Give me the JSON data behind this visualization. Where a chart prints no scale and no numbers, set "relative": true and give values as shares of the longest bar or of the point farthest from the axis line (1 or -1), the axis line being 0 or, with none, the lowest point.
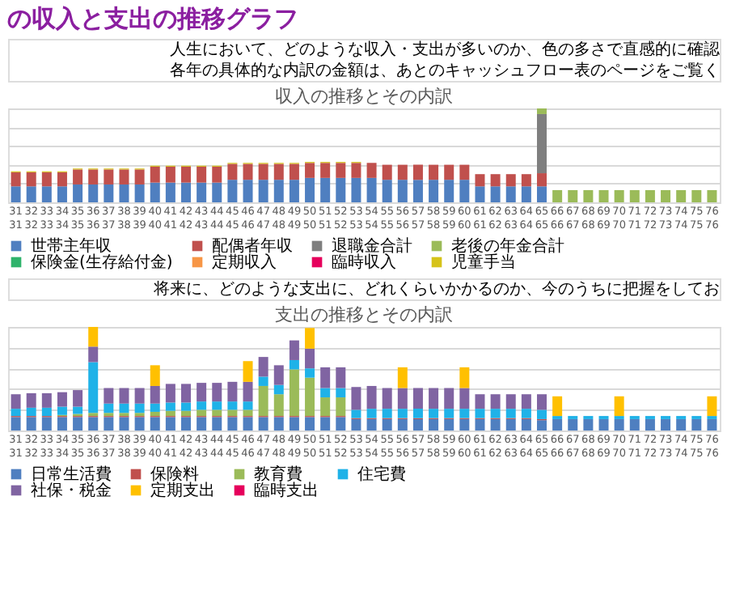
{
  "chart_data": [
    {
      "type": "bar",
      "title": "の収入と支出の推移グラフ",
      "subtitle": "収入の推移とその内訳",
      "annotations": [
        "人生において、どのような収入・支出が多いのか、色の多さで直感的に確認",
        "各年の具体的な内訳の金額は、あとのキャッシュフロー表のページをご覧く"
      ],
      "stacked": true,
      "relative": true,
      "grid": "y",
      "legend": "bottom",
      "categories": [
        "31\n31",
        "32\n32",
        "33\n33",
        "34\n34",
        "35\n35",
        "36\n36",
        "37\n37",
        "38\n38",
        "39\n39",
        "40\n40",
        "41\n41",
        "42\n42",
        "43\n43",
        "44\n44",
        "45\n45",
        "46\n46",
        "47\n47",
        "48\n48",
        "49\n49",
        "50\n50",
        "51\n51",
        "52\n52",
        "53\n53",
        "54\n54",
        "55\n55",
        "56\n56",
        "57\n57",
        "58\n58",
        "59\n59",
        "60\n60",
        "61\n61",
        "62\n62",
        "63\n63",
        "64\n64",
        "65\n65",
        "66\n66",
        "67\n67",
        "68\n68",
        "69\n69",
        "70\n70",
        "71\n71",
        "72\n72",
        "73\n73",
        "74\n74",
        "75\n75",
        "76\n76"
      ],
      "series": [
        {
          "name": "世帯主年収",
          "color": "#4f7fc0",
          "values": [
            0.17,
            0.17,
            0.17,
            0.17,
            0.19,
            0.19,
            0.19,
            0.19,
            0.19,
            0.21,
            0.21,
            0.21,
            0.21,
            0.21,
            0.24,
            0.24,
            0.24,
            0.24,
            0.24,
            0.26,
            0.26,
            0.26,
            0.26,
            0.26,
            0.24,
            0.24,
            0.24,
            0.24,
            0.24,
            0.24,
            0.17,
            0.17,
            0.17,
            0.17,
            0.17,
            null,
            null,
            null,
            null,
            null,
            null,
            null,
            null,
            null,
            null,
            null
          ]
        },
        {
          "name": "配偶者年収",
          "color": "#c0504d",
          "values": [
            0.15,
            0.15,
            0.15,
            0.15,
            0.16,
            0.16,
            0.16,
            0.16,
            0.16,
            0.17,
            0.17,
            0.17,
            0.17,
            0.17,
            0.17,
            0.17,
            0.17,
            0.17,
            0.17,
            0.16,
            0.16,
            0.16,
            0.16,
            0.16,
            0.16,
            0.16,
            0.16,
            0.16,
            0.16,
            0.16,
            0.13,
            0.13,
            0.13,
            0.13,
            0.14,
            null,
            null,
            null,
            null,
            null,
            null,
            null,
            null,
            null,
            null,
            null
          ]
        },
        {
          "name": "退職金合計",
          "color": "#7f7f7f",
          "values": [
            null,
            null,
            null,
            null,
            null,
            null,
            null,
            null,
            null,
            null,
            null,
            null,
            null,
            null,
            null,
            null,
            null,
            null,
            null,
            null,
            null,
            null,
            null,
            null,
            null,
            null,
            null,
            null,
            null,
            null,
            null,
            null,
            null,
            null,
            0.63,
            null,
            null,
            null,
            null,
            null,
            null,
            null,
            null,
            null,
            null,
            null
          ]
        },
        {
          "name": "老後の年金合計",
          "color": "#9bbb59",
          "values": [
            null,
            null,
            null,
            null,
            null,
            null,
            null,
            null,
            null,
            null,
            null,
            null,
            null,
            null,
            null,
            null,
            null,
            null,
            null,
            null,
            null,
            null,
            null,
            null,
            null,
            null,
            null,
            null,
            null,
            null,
            null,
            null,
            null,
            null,
            0.06,
            0.13,
            0.13,
            0.13,
            0.13,
            0.13,
            0.13,
            0.13,
            0.13,
            0.13,
            0.13,
            0.13
          ]
        },
        {
          "name": "保険金(生存給付金)",
          "color": "#2fb36b",
          "values": [
            null,
            null,
            null,
            null,
            null,
            null,
            null,
            null,
            null,
            null,
            null,
            null,
            null,
            null,
            null,
            null,
            null,
            null,
            null,
            null,
            null,
            null,
            null,
            null,
            null,
            null,
            null,
            null,
            null,
            null,
            null,
            null,
            null,
            null,
            null,
            null,
            null,
            null,
            null,
            null,
            null,
            null,
            null,
            null,
            null,
            null
          ]
        },
        {
          "name": "定期収入",
          "color": "#f79646",
          "values": [
            null,
            null,
            null,
            null,
            null,
            null,
            null,
            null,
            null,
            null,
            null,
            null,
            null,
            null,
            null,
            null,
            null,
            null,
            null,
            null,
            null,
            null,
            null,
            null,
            null,
            null,
            null,
            null,
            null,
            null,
            null,
            null,
            null,
            null,
            null,
            null,
            null,
            null,
            null,
            null,
            null,
            null,
            null,
            null,
            null,
            null
          ]
        },
        {
          "name": "臨時収入",
          "color": "#e6005c",
          "values": [
            null,
            null,
            null,
            null,
            null,
            null,
            null,
            null,
            null,
            null,
            null,
            null,
            null,
            null,
            null,
            null,
            null,
            null,
            null,
            null,
            null,
            null,
            null,
            null,
            null,
            null,
            null,
            null,
            null,
            null,
            null,
            null,
            null,
            null,
            null,
            null,
            null,
            null,
            null,
            null,
            null,
            null,
            null,
            null,
            null,
            null
          ]
        },
        {
          "name": "児童手当",
          "color": "#d6c31a",
          "values": [
            0.01,
            0.01,
            0.01,
            0.01,
            0.01,
            0.01,
            0.01,
            0.01,
            0.01,
            0.01,
            0.01,
            0.01,
            0.01,
            0.01,
            0.01,
            0.01,
            0.01,
            0.01,
            0.01,
            0.01,
            0.01,
            0.01,
            0.01,
            null,
            null,
            null,
            null,
            null,
            null,
            null,
            null,
            null,
            null,
            null,
            null,
            null,
            null,
            null,
            null,
            null,
            null,
            null,
            null,
            null,
            null,
            null
          ]
        }
      ]
    },
    {
      "type": "bar",
      "title": "支出の推移とその内訳",
      "annotations": [
        "将来に、どのような支出に、どれくらいかかるのか、今のうちに把握をしてお"
      ],
      "stacked": true,
      "relative": true,
      "grid": "y",
      "legend": "bottom",
      "categories": [
        "31\n31",
        "32\n32",
        "33\n33",
        "34\n34",
        "35\n35",
        "36\n36",
        "37\n37",
        "38\n38",
        "39\n39",
        "40\n40",
        "41\n41",
        "42\n42",
        "43\n43",
        "44\n44",
        "45\n45",
        "46\n46",
        "47\n47",
        "48\n48",
        "49\n49",
        "50\n50",
        "51\n51",
        "52\n52",
        "53\n53",
        "54\n54",
        "55\n55",
        "56\n56",
        "57\n57",
        "58\n58",
        "59\n59",
        "60\n60",
        "61\n61",
        "62\n62",
        "63\n63",
        "64\n64",
        "65\n65",
        "66\n66",
        "67\n67",
        "68\n68",
        "69\n69",
        "70\n70",
        "71\n71",
        "72\n72",
        "73\n73",
        "74\n74",
        "75\n75",
        "76\n76"
      ],
      "series": [
        {
          "name": "日常生活費",
          "color": "#4f7fc0",
          "values": [
            0.13,
            0.13,
            0.13,
            0.13,
            0.13,
            0.13,
            0.13,
            0.13,
            0.13,
            0.13,
            0.13,
            0.13,
            0.13,
            0.13,
            0.13,
            0.13,
            0.13,
            0.13,
            0.13,
            0.13,
            0.13,
            0.13,
            0.11,
            0.11,
            0.11,
            0.11,
            0.11,
            0.11,
            0.11,
            0.11,
            0.11,
            0.11,
            0.11,
            0.11,
            0.1,
            0.11,
            0.11,
            0.11,
            0.11,
            0.11,
            0.11,
            0.11,
            0.11,
            0.11,
            0.11,
            0.11
          ]
        },
        {
          "name": "保険料",
          "color": "#c0504d",
          "values": [
            0.01,
            0.01,
            0.01,
            0.01,
            0.01,
            0.01,
            0.01,
            0.01,
            0.01,
            0.01,
            0.01,
            0.01,
            0.01,
            0.01,
            0.01,
            0.01,
            0.01,
            0.01,
            0.01,
            0.01,
            0.01,
            0.01,
            0.01,
            0.01,
            0.01,
            0.01,
            0.01,
            0.01,
            0.01,
            0.01,
            0.01,
            0.01,
            0.01,
            0.01,
            0.01,
            null,
            null,
            null,
            null,
            null,
            null,
            null,
            null,
            null,
            null,
            null
          ]
        },
        {
          "name": "教育費",
          "color": "#9bbb59",
          "values": [
            null,
            null,
            null,
            0.01,
            0.02,
            0.03,
            0.03,
            0.03,
            0.03,
            0.04,
            0.05,
            0.05,
            0.06,
            0.06,
            0.06,
            0.06,
            0.29,
            0.21,
            0.45,
            0.37,
            0.18,
            0.18,
            null,
            null,
            null,
            null,
            null,
            null,
            null,
            null,
            null,
            null,
            null,
            null,
            null,
            null,
            null,
            null,
            null,
            null,
            null,
            null,
            null,
            null,
            null,
            null
          ]
        },
        {
          "name": "住宅費",
          "color": "#1fb2e8",
          "values": [
            0.07,
            0.08,
            0.08,
            0.08,
            0.07,
            0.49,
            0.09,
            0.09,
            0.09,
            0.08,
            0.08,
            0.08,
            0.08,
            0.08,
            0.08,
            0.08,
            0.09,
            0.09,
            0.09,
            0.09,
            0.09,
            0.09,
            0.08,
            0.09,
            0.09,
            0.09,
            0.09,
            0.09,
            0.09,
            0.09,
            0.09,
            0.09,
            0.09,
            0.09,
            0.09,
            0.03,
            0.03,
            0.03,
            0.03,
            0.03,
            0.03,
            0.03,
            0.03,
            0.03,
            0.03,
            0.03
          ]
        },
        {
          "name": "社保・税金",
          "color": "#8064a2",
          "values": [
            0.14,
            0.14,
            0.14,
            0.14,
            0.16,
            0.15,
            0.15,
            0.15,
            0.15,
            0.17,
            0.18,
            0.18,
            0.18,
            0.18,
            0.19,
            0.19,
            0.19,
            0.19,
            0.19,
            0.19,
            0.2,
            0.2,
            0.22,
            0.22,
            0.2,
            0.2,
            0.2,
            0.2,
            0.2,
            0.2,
            0.14,
            0.14,
            0.14,
            0.14,
            0.15,
            null,
            null,
            null,
            null,
            null,
            null,
            null,
            null,
            null,
            null,
            null
          ]
        },
        {
          "name": "定期支出",
          "color": "#ffc000",
          "values": [
            null,
            null,
            null,
            null,
            null,
            0.19,
            null,
            null,
            null,
            0.2,
            null,
            null,
            null,
            null,
            null,
            0.2,
            null,
            null,
            null,
            0.2,
            null,
            null,
            null,
            null,
            null,
            0.2,
            null,
            null,
            null,
            0.2,
            null,
            null,
            null,
            null,
            null,
            0.19,
            null,
            null,
            null,
            0.19,
            null,
            null,
            null,
            null,
            null,
            0.19
          ]
        },
        {
          "name": "臨時支出",
          "color": "#e6005c",
          "values": [
            null,
            null,
            null,
            null,
            null,
            null,
            null,
            null,
            null,
            null,
            null,
            null,
            null,
            null,
            null,
            null,
            null,
            null,
            null,
            null,
            null,
            null,
            null,
            null,
            null,
            null,
            null,
            null,
            null,
            null,
            null,
            null,
            null,
            null,
            null,
            null,
            null,
            null,
            null,
            null,
            null,
            null,
            null,
            null,
            null,
            null
          ]
        }
      ]
    }
  ]
}
